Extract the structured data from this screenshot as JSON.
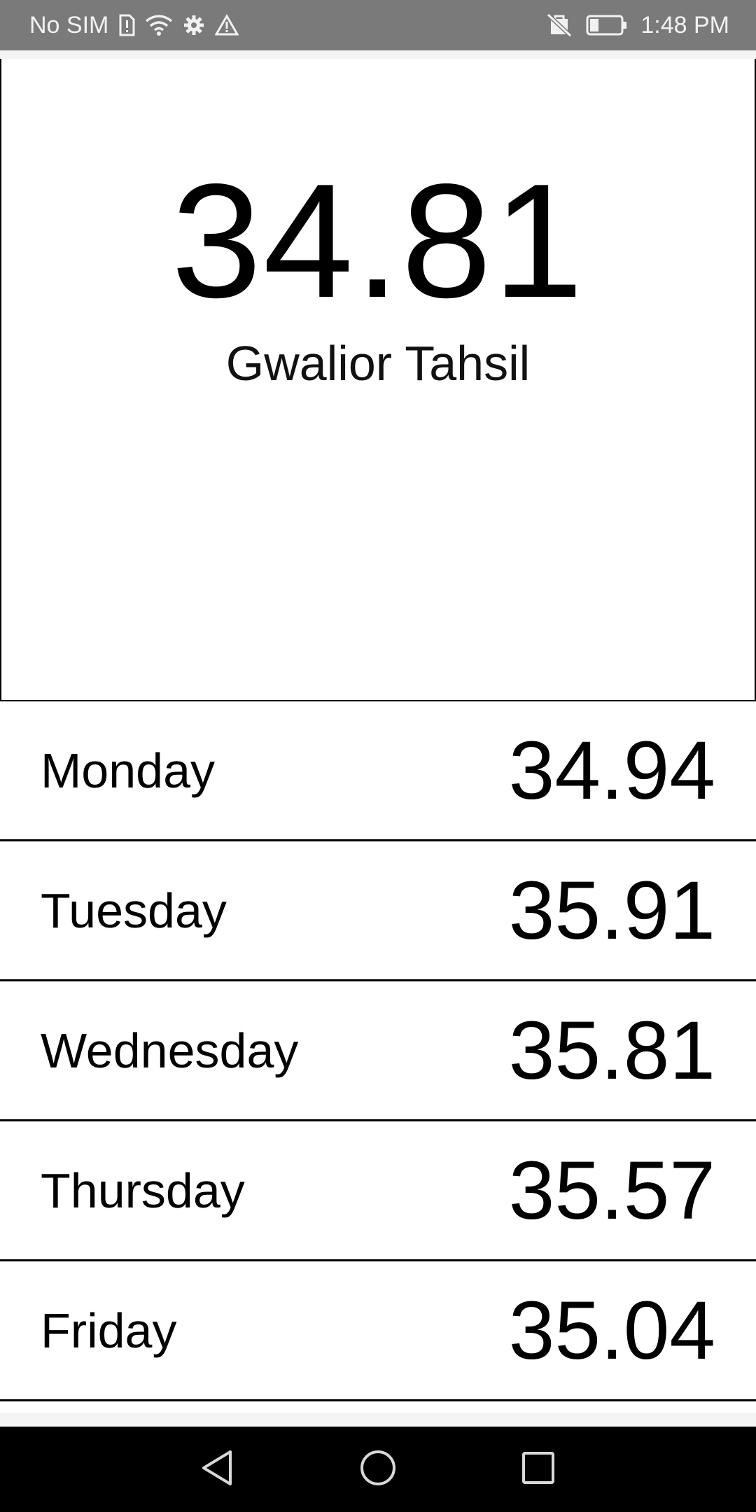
{
  "status_bar": {
    "carrier": "No SIM",
    "time": "1:48 PM",
    "icons": [
      "sim-alert-icon",
      "wifi-icon",
      "settings-icon",
      "warning-icon",
      "no-sd-card-icon",
      "battery-icon"
    ]
  },
  "hero": {
    "value": "34.81",
    "location": "Gwalior Tahsil"
  },
  "forecast": [
    {
      "day": "Monday",
      "value": "34.94"
    },
    {
      "day": "Tuesday",
      "value": "35.91"
    },
    {
      "day": "Wednesday",
      "value": "35.81"
    },
    {
      "day": "Thursday",
      "value": "35.57"
    },
    {
      "day": "Friday",
      "value": "35.04"
    }
  ],
  "nav": {
    "buttons": [
      "back-icon",
      "home-icon",
      "recents-icon"
    ]
  },
  "colors": {
    "status_bar_bg": "#7a7a7a",
    "nav_bar_bg": "#000000",
    "text": "#000000"
  }
}
